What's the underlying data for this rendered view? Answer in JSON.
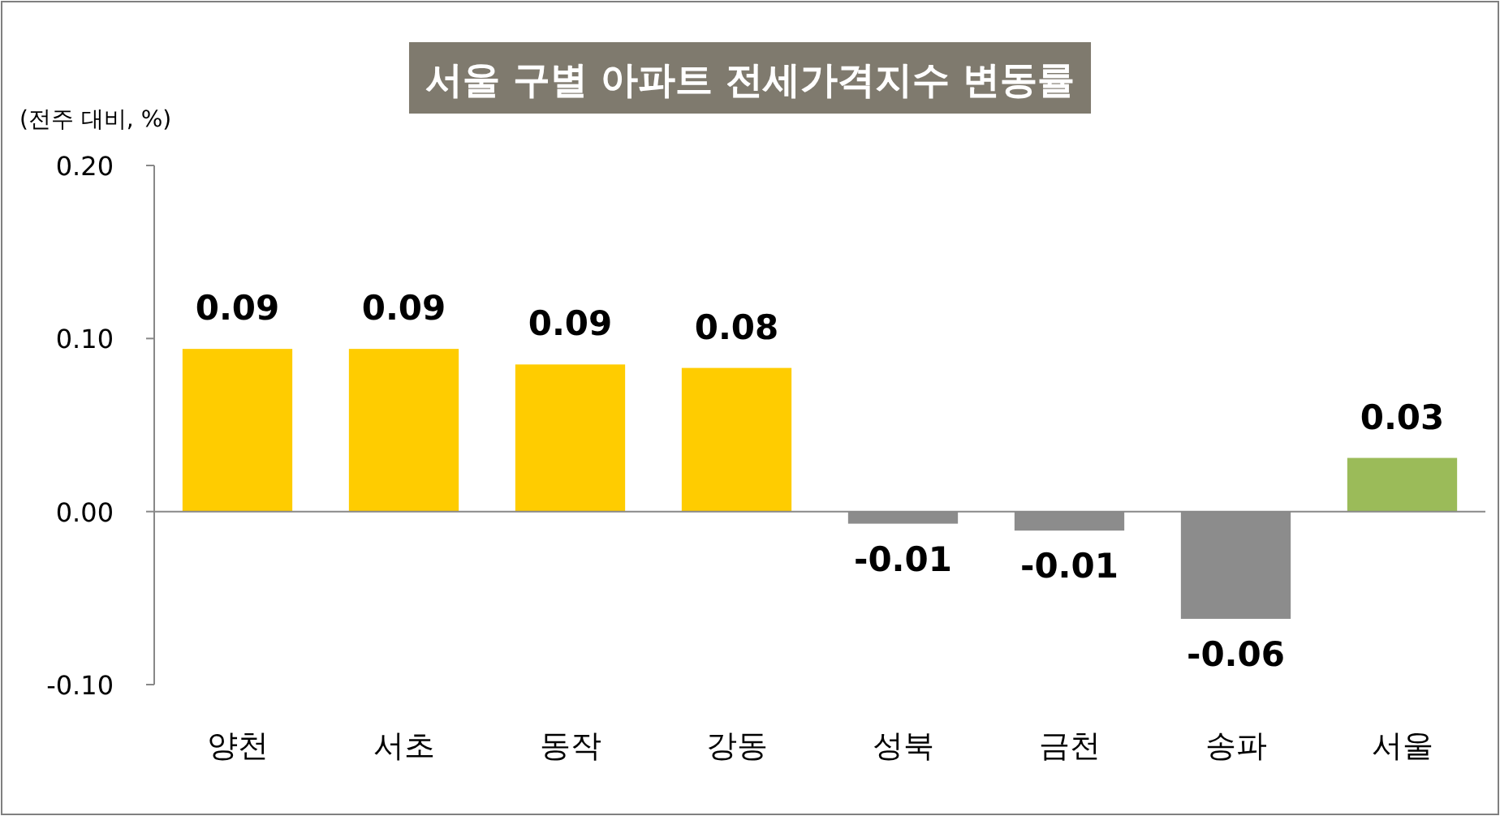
{
  "chart_data": {
    "type": "bar",
    "title": "서울 구별 아파트 전세가격지수 변동률",
    "ylabel": "(전주 대비, %)",
    "categories": [
      "양천",
      "서초",
      "동작",
      "강동",
      "성북",
      "금천",
      "송파",
      "서울"
    ],
    "values": [
      0.094,
      0.094,
      0.085,
      0.083,
      -0.007,
      -0.011,
      -0.062,
      0.031
    ],
    "colors": [
      "#ffcc00",
      "#ffcc00",
      "#ffcc00",
      "#ffcc00",
      "#8c8c8c",
      "#8c8c8c",
      "#8c8c8c",
      "#9bbb59"
    ],
    "value_labels": [
      "0.09",
      "0.09",
      "0.09",
      "0.08",
      "-0.01",
      "-0.01",
      "-0.06",
      "0.03"
    ],
    "ylim": [
      -0.1,
      0.2
    ],
    "yticks": [
      {
        "value": -0.1,
        "label": "-0.10"
      },
      {
        "value": 0,
        "label": "0.00"
      },
      {
        "value": 0.1,
        "label": "0.10"
      },
      {
        "value": 0.2,
        "label": "0.20"
      }
    ]
  }
}
